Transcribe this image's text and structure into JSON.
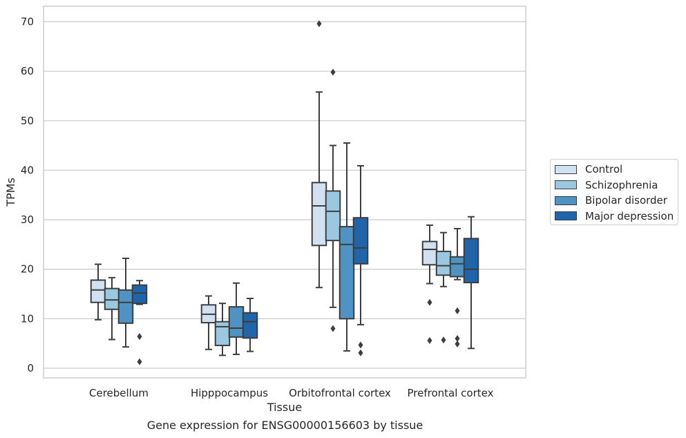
{
  "chart_data": {
    "type": "box",
    "xlabel": "Tissue",
    "ylabel": "TPMs",
    "caption": "Gene expression for ENSG00000156603 by tissue",
    "ylim": [
      -2,
      73
    ],
    "yticks": [
      0,
      10,
      20,
      30,
      40,
      50,
      60,
      70
    ],
    "grid": "horizontal",
    "legend_position": "right",
    "categories": [
      "Cerebellum",
      "Hipppocampus",
      "Orbitofrontal cortex",
      "Prefrontal cortex"
    ],
    "series": [
      {
        "name": "Control",
        "color": "#d0e1f2",
        "boxes": [
          {
            "whislo": 9.8,
            "q1": 13.3,
            "med": 15.8,
            "q3": 17.8,
            "whishi": 21.0,
            "fliers": []
          },
          {
            "whislo": 3.8,
            "q1": 9.2,
            "med": 10.9,
            "q3": 12.8,
            "whishi": 14.6,
            "fliers": []
          },
          {
            "whislo": 16.3,
            "q1": 24.8,
            "med": 32.8,
            "q3": 37.5,
            "whishi": 55.8,
            "fliers": [
              69.6
            ]
          },
          {
            "whislo": 17.1,
            "q1": 20.9,
            "med": 24.0,
            "q3": 25.6,
            "whishi": 28.9,
            "fliers": [
              13.3,
              5.6
            ]
          }
        ]
      },
      {
        "name": "Schizophrenia",
        "color": "#9ac8e0",
        "boxes": [
          {
            "whislo": 5.8,
            "q1": 11.9,
            "med": 13.8,
            "q3": 16.1,
            "whishi": 18.3,
            "fliers": []
          },
          {
            "whislo": 2.6,
            "q1": 4.6,
            "med": 8.4,
            "q3": 9.4,
            "whishi": 13.1,
            "fliers": []
          },
          {
            "whislo": 12.3,
            "q1": 25.8,
            "med": 31.7,
            "q3": 35.8,
            "whishi": 45.0,
            "fliers": [
              59.8,
              8.0
            ]
          },
          {
            "whislo": 16.5,
            "q1": 18.8,
            "med": 20.7,
            "q3": 23.6,
            "whishi": 27.4,
            "fliers": [
              5.7
            ]
          }
        ]
      },
      {
        "name": "Bipolar disorder",
        "color": "#4e93c3",
        "boxes": [
          {
            "whislo": 4.3,
            "q1": 9.1,
            "med": 13.3,
            "q3": 15.8,
            "whishi": 22.2,
            "fliers": []
          },
          {
            "whislo": 2.8,
            "q1": 6.3,
            "med": 8.1,
            "q3": 12.4,
            "whishi": 17.2,
            "fliers": []
          },
          {
            "whislo": 3.5,
            "q1": 10.0,
            "med": 25.0,
            "q3": 28.6,
            "whishi": 45.5,
            "fliers": []
          },
          {
            "whislo": 17.9,
            "q1": 18.5,
            "med": 21.1,
            "q3": 22.5,
            "whishi": 28.2,
            "fliers": [
              11.6,
              6.0,
              4.9
            ]
          }
        ]
      },
      {
        "name": "Major depression",
        "color": "#2064aa",
        "boxes": [
          {
            "whislo": 12.9,
            "q1": 13.1,
            "med": 15.2,
            "q3": 16.8,
            "whishi": 17.7,
            "fliers": [
              6.4,
              1.3
            ]
          },
          {
            "whislo": 3.4,
            "q1": 6.1,
            "med": 9.4,
            "q3": 11.2,
            "whishi": 14.1,
            "fliers": []
          },
          {
            "whislo": 8.8,
            "q1": 21.1,
            "med": 24.3,
            "q3": 30.4,
            "whishi": 40.9,
            "fliers": [
              4.7,
              3.1
            ]
          },
          {
            "whislo": 4.0,
            "q1": 17.3,
            "med": 20.0,
            "q3": 26.2,
            "whishi": 30.6,
            "fliers": []
          }
        ]
      }
    ]
  }
}
